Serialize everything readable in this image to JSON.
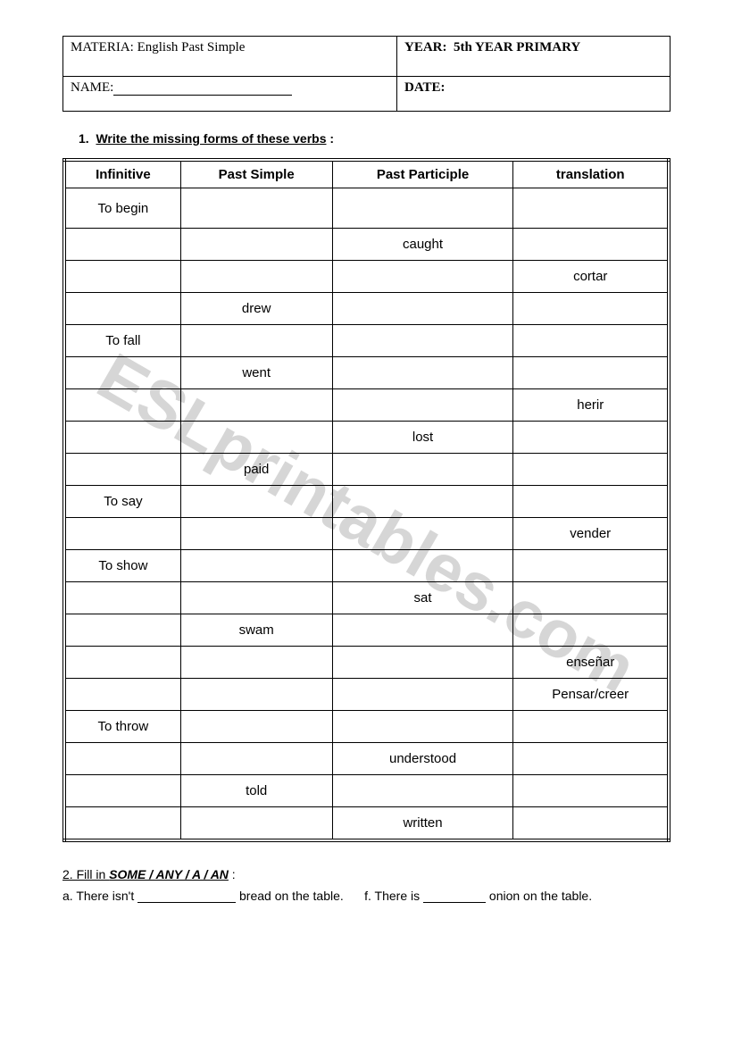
{
  "watermark": "ESLprintables.com",
  "header": {
    "materia_label": "MATERIA:",
    "materia_value": "English   Past Simple",
    "year_label": "YEAR:",
    "year_value": "5th YEAR PRIMARY",
    "name_label": "NAME:",
    "date_label": "DATE:"
  },
  "exercise1": {
    "number": "1.",
    "instruction": "Write the missing forms of these verbs",
    "columns": [
      "Infinitive",
      "Past Simple",
      "Past Participle",
      "translation"
    ],
    "rows": [
      {
        "inf": "To begin",
        "past": "",
        "pp": "",
        "trans": "",
        "tall": true
      },
      {
        "inf": "",
        "past": "",
        "pp": "caught",
        "trans": ""
      },
      {
        "inf": "",
        "past": "",
        "pp": "",
        "trans": "cortar"
      },
      {
        "inf": "",
        "past": "drew",
        "pp": "",
        "trans": ""
      },
      {
        "inf": "To fall",
        "past": "",
        "pp": "",
        "trans": ""
      },
      {
        "inf": "",
        "past": "went",
        "pp": "",
        "trans": ""
      },
      {
        "inf": "",
        "past": "",
        "pp": "",
        "trans": "herir"
      },
      {
        "inf": "",
        "past": "",
        "pp": "lost",
        "trans": ""
      },
      {
        "inf": "",
        "past": "paid",
        "pp": "",
        "trans": ""
      },
      {
        "inf": "To say",
        "past": "",
        "pp": "",
        "trans": ""
      },
      {
        "inf": "",
        "past": "",
        "pp": "",
        "trans": "vender"
      },
      {
        "inf": "To show",
        "past": "",
        "pp": "",
        "trans": ""
      },
      {
        "inf": "",
        "past": "",
        "pp": "sat",
        "trans": ""
      },
      {
        "inf": "",
        "past": "swam",
        "pp": "",
        "trans": ""
      },
      {
        "inf": "",
        "past": "",
        "pp": "",
        "trans": "enseñar"
      },
      {
        "inf": "",
        "past": "",
        "pp": "",
        "trans": "Pensar/creer"
      },
      {
        "inf": "To throw",
        "past": "",
        "pp": "",
        "trans": ""
      },
      {
        "inf": "",
        "past": "",
        "pp": "understood",
        "trans": ""
      },
      {
        "inf": "",
        "past": "told",
        "pp": "",
        "trans": ""
      },
      {
        "inf": "",
        "past": "",
        "pp": "written",
        "trans": ""
      }
    ]
  },
  "exercise2": {
    "title_prefix": "2. Fill in ",
    "title_italic": "SOME / ANY / A / AN",
    "title_suffix": " :",
    "line_a_1": "a. There isn't ",
    "line_a_2": " bread on the table.",
    "line_f_1": "f. There is ",
    "line_f_2": " onion on the table."
  }
}
